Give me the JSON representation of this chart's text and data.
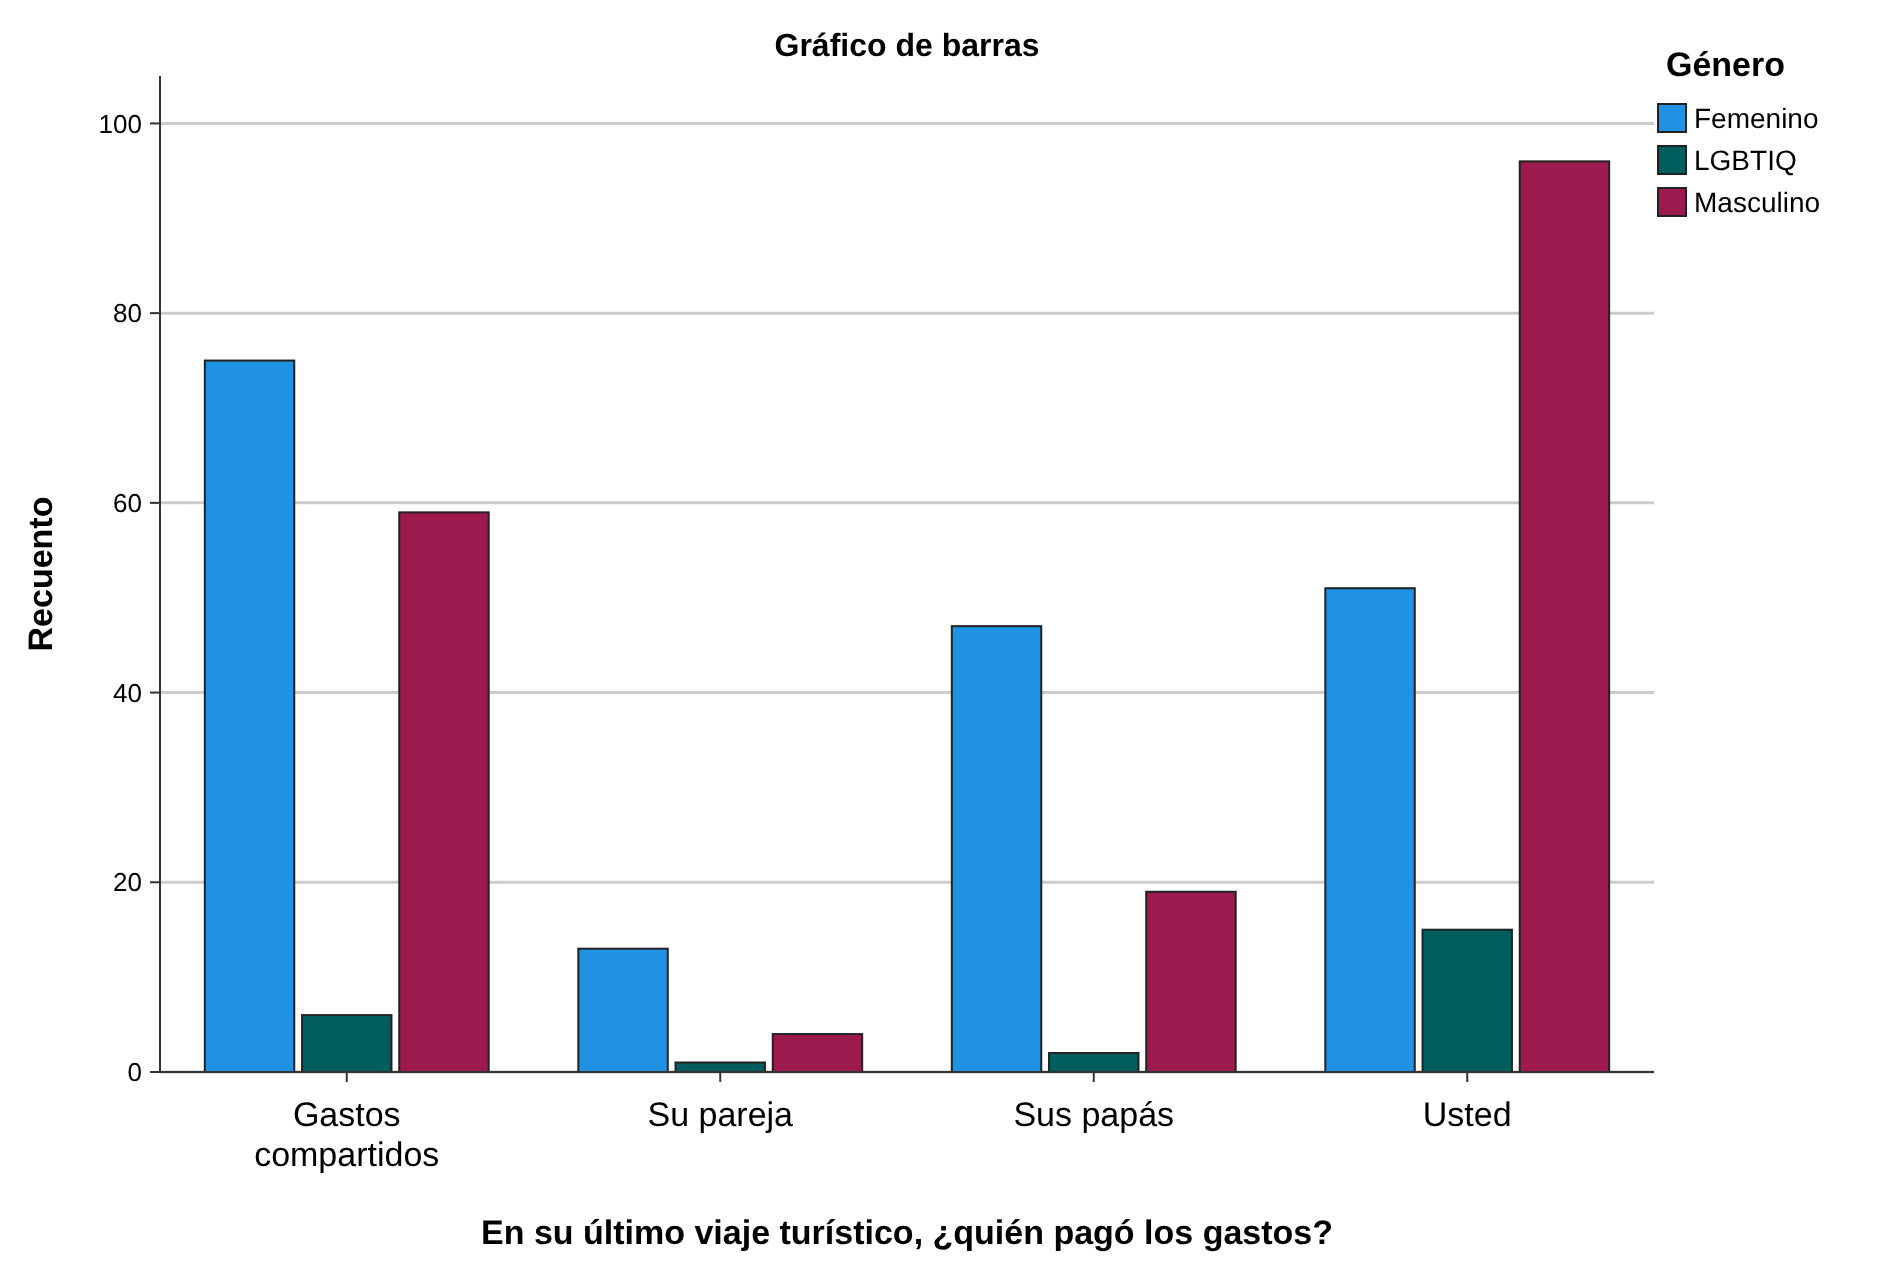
{
  "chart_data": {
    "type": "bar",
    "title": "Gráfico de barras",
    "xlabel": "En su último viaje turístico, ¿quién pagó los gastos?",
    "ylabel": "Recuento",
    "legend_title": "Género",
    "categories": [
      "Gastos compartidos",
      "Su pareja",
      "Sus papás",
      "Usted"
    ],
    "series": [
      {
        "name": "Femenino",
        "color": "#1f92e4",
        "values": [
          75,
          13,
          47,
          51
        ]
      },
      {
        "name": "LGBTIQ",
        "color": "#005e5e",
        "values": [
          6,
          1,
          2,
          15
        ]
      },
      {
        "name": "Masculino",
        "color": "#9c1a4e",
        "values": [
          59,
          4,
          19,
          96
        ]
      }
    ],
    "ylim": [
      0,
      105
    ],
    "yticks": [
      0,
      20,
      40,
      60,
      80,
      100
    ],
    "grid": "y",
    "legend": "top right"
  }
}
